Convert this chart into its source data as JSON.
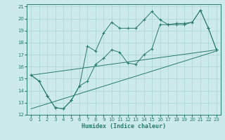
{
  "title": "",
  "xlabel": "Humidex (Indice chaleur)",
  "ylabel": "",
  "background_color": "#cceaea",
  "line_color": "#2a7a6a",
  "grid_color": "#aad4d4",
  "xlim": [
    -0.5,
    23.5
  ],
  "ylim": [
    12,
    21.2
  ],
  "yticks": [
    12,
    13,
    14,
    15,
    16,
    17,
    18,
    19,
    20,
    21
  ],
  "xticks": [
    0,
    1,
    2,
    3,
    4,
    5,
    6,
    7,
    8,
    9,
    10,
    11,
    12,
    13,
    14,
    15,
    16,
    17,
    18,
    19,
    20,
    21,
    22,
    23
  ],
  "curve1_x": [
    0,
    1,
    2,
    3,
    4,
    5,
    6,
    7,
    8,
    9,
    10,
    11,
    12,
    13,
    14,
    15,
    16,
    17,
    18,
    19,
    20,
    21,
    22,
    23
  ],
  "curve1_y": [
    15.3,
    14.8,
    13.6,
    12.6,
    12.5,
    13.2,
    14.4,
    17.7,
    17.3,
    18.8,
    19.7,
    19.2,
    19.2,
    19.2,
    19.9,
    20.6,
    19.9,
    19.5,
    19.6,
    19.6,
    19.7,
    20.7,
    19.2,
    17.4
  ],
  "curve2_x": [
    0,
    1,
    2,
    3,
    4,
    5,
    6,
    7,
    8,
    9,
    10,
    11,
    12,
    13,
    14,
    15,
    16,
    17,
    18,
    19,
    20,
    21,
    22,
    23
  ],
  "curve2_y": [
    15.3,
    14.8,
    13.6,
    12.6,
    12.5,
    13.2,
    14.4,
    14.8,
    16.2,
    16.7,
    17.4,
    17.2,
    16.3,
    16.2,
    17.0,
    17.5,
    19.5,
    19.5,
    19.5,
    19.5,
    19.7,
    20.7,
    19.2,
    17.4
  ],
  "line3_x": [
    0,
    23
  ],
  "line3_y": [
    12.5,
    17.3
  ],
  "line4_x": [
    0,
    23
  ],
  "line4_y": [
    15.3,
    17.4
  ]
}
